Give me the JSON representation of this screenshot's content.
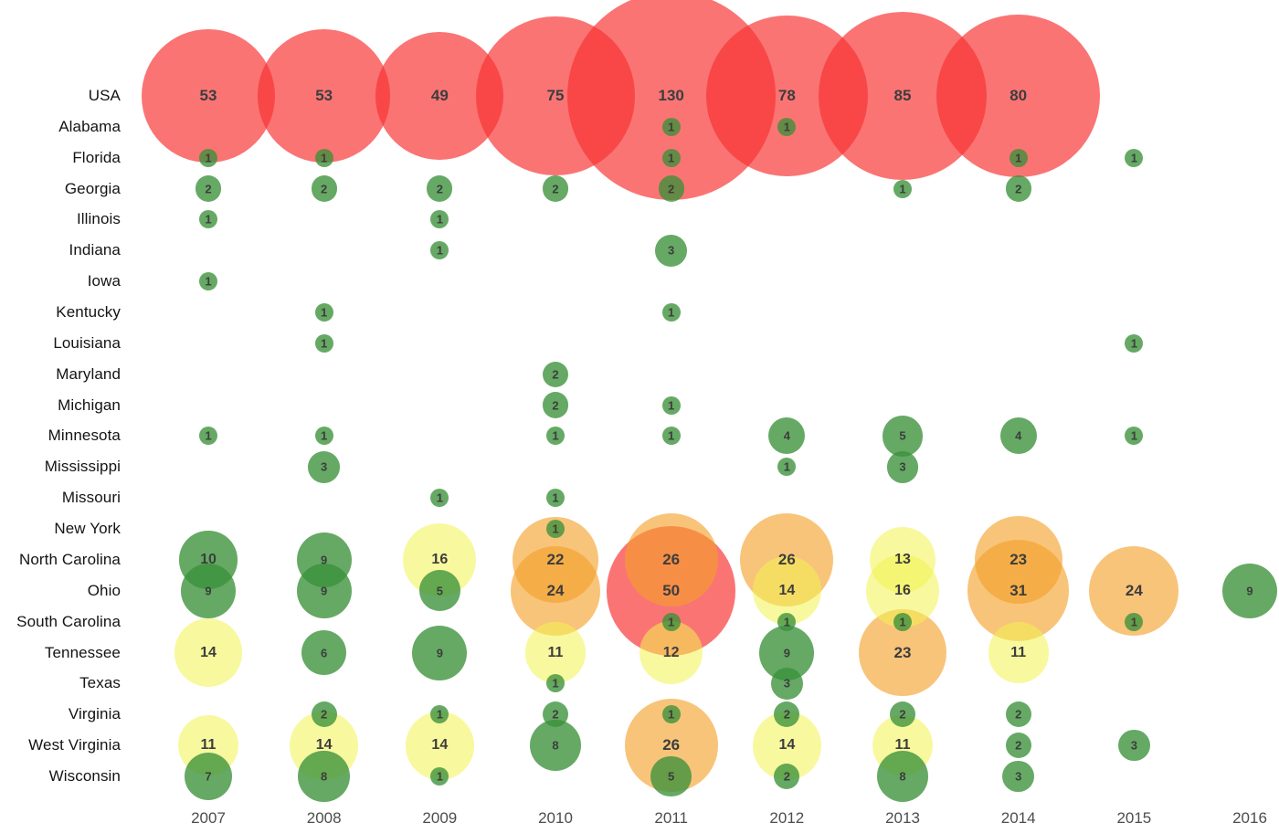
{
  "chart_data": {
    "type": "scatter",
    "subtype": "bubble-matrix",
    "title": "",
    "xlabel": "",
    "ylabel": "",
    "x_categories": [
      "2007",
      "2008",
      "2009",
      "2010",
      "2011",
      "2012",
      "2013",
      "2014",
      "2015",
      "2016"
    ],
    "y_categories": [
      "USA",
      "Alabama",
      "Florida",
      "Georgia",
      "Illinois",
      "Indiana",
      "Iowa",
      "Kentucky",
      "Louisiana",
      "Maryland",
      "Michigan",
      "Minnesota",
      "Mississippi",
      "Missouri",
      "New York",
      "North Carolina",
      "Ohio",
      "South Carolina",
      "Tennessee",
      "Texas",
      "Virginia",
      "West Virginia",
      "Wisconsin"
    ],
    "series": [
      {
        "state": "USA",
        "values": {
          "2007": 53,
          "2008": 53,
          "2009": 49,
          "2010": 75,
          "2011": 130,
          "2012": 78,
          "2013": 85,
          "2014": 80
        }
      },
      {
        "state": "Alabama",
        "values": {
          "2011": 1,
          "2012": 1
        }
      },
      {
        "state": "Florida",
        "values": {
          "2007": 1,
          "2008": 1,
          "2011": 1,
          "2014": 1,
          "2015": 1
        }
      },
      {
        "state": "Georgia",
        "values": {
          "2007": 2,
          "2008": 2,
          "2009": 2,
          "2010": 2,
          "2011": 2,
          "2013": 1,
          "2014": 2
        }
      },
      {
        "state": "Illinois",
        "values": {
          "2007": 1,
          "2009": 1
        }
      },
      {
        "state": "Indiana",
        "values": {
          "2009": 1,
          "2011": 3
        }
      },
      {
        "state": "Iowa",
        "values": {
          "2007": 1
        }
      },
      {
        "state": "Kentucky",
        "values": {
          "2008": 1,
          "2011": 1
        }
      },
      {
        "state": "Louisiana",
        "values": {
          "2008": 1,
          "2015": 1
        }
      },
      {
        "state": "Maryland",
        "values": {
          "2010": 2
        }
      },
      {
        "state": "Michigan",
        "values": {
          "2010": 2,
          "2011": 1
        }
      },
      {
        "state": "Minnesota",
        "values": {
          "2007": 1,
          "2008": 1,
          "2010": 1,
          "2011": 1,
          "2012": 4,
          "2013": 5,
          "2014": 4,
          "2015": 1
        }
      },
      {
        "state": "Mississippi",
        "values": {
          "2008": 3,
          "2012": 1,
          "2013": 3
        }
      },
      {
        "state": "Missouri",
        "values": {
          "2009": 1,
          "2010": 1
        }
      },
      {
        "state": "New York",
        "values": {
          "2010": 1
        }
      },
      {
        "state": "North Carolina",
        "values": {
          "2007": 10,
          "2008": 9,
          "2009": 16,
          "2010": 22,
          "2011": 26,
          "2012": 26,
          "2013": 13,
          "2014": 23
        }
      },
      {
        "state": "Ohio",
        "values": {
          "2007": 9,
          "2008": 9,
          "2009": 5,
          "2010": 24,
          "2011": 50,
          "2012": 14,
          "2013": 16,
          "2014": 31,
          "2015": 24,
          "2016": 9
        }
      },
      {
        "state": "South Carolina",
        "values": {
          "2011": 1,
          "2012": 1,
          "2013": 1,
          "2015": 1
        }
      },
      {
        "state": "Tennessee",
        "values": {
          "2007": 14,
          "2008": 6,
          "2009": 9,
          "2010": 11,
          "2011": 12,
          "2012": 9,
          "2013": 23,
          "2014": 11
        }
      },
      {
        "state": "Texas",
        "values": {
          "2010": 1,
          "2012": 3
        }
      },
      {
        "state": "Virginia",
        "values": {
          "2008": 2,
          "2009": 1,
          "2010": 2,
          "2011": 1,
          "2012": 2,
          "2013": 2,
          "2014": 2
        }
      },
      {
        "state": "West Virginia",
        "values": {
          "2007": 11,
          "2008": 14,
          "2009": 14,
          "2010": 8,
          "2011": 26,
          "2012": 14,
          "2013": 11,
          "2014": 2,
          "2015": 3
        }
      },
      {
        "state": "Wisconsin",
        "values": {
          "2007": 7,
          "2008": 8,
          "2009": 1,
          "2011": 5,
          "2012": 2,
          "2013": 8,
          "2014": 3
        }
      }
    ],
    "color_scale": [
      {
        "label": "low",
        "max": 10,
        "color": "rgba(58,145,58,0.78)",
        "hex": "#65A965"
      },
      {
        "label": "medium",
        "max": 20,
        "color": "rgba(242,242,80,0.55)",
        "hex": "#F8F89E"
      },
      {
        "label": "high",
        "max": 45,
        "color": "rgba(244,160,40,0.62)",
        "hex": "#F8C479"
      },
      {
        "label": "very-high",
        "max": 1000,
        "color": "rgba(247,50,50,0.68)",
        "hex": "#F97373"
      }
    ],
    "size_encoding": "radius proportional to sqrt(value)",
    "legend_position": "none",
    "grid": false
  }
}
